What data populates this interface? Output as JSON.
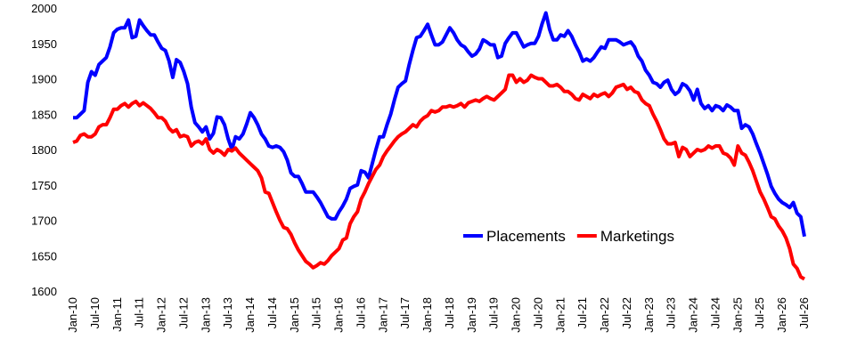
{
  "chart_data": {
    "type": "line",
    "categories": [
      "Jan-10",
      null,
      null,
      null,
      null,
      null,
      "Jul-10",
      null,
      null,
      null,
      null,
      null,
      "Jan-11",
      null,
      null,
      null,
      null,
      null,
      "Jul-11",
      null,
      null,
      null,
      null,
      null,
      "Jan-12",
      null,
      null,
      null,
      null,
      null,
      "Jul-12",
      null,
      null,
      null,
      null,
      null,
      "Jan-13",
      null,
      null,
      null,
      null,
      null,
      "Jul-13",
      null,
      null,
      null,
      null,
      null,
      "Jan-14",
      null,
      null,
      null,
      null,
      null,
      "Jul-14",
      null,
      null,
      null,
      null,
      null,
      "Jan-15",
      null,
      null,
      null,
      null,
      null,
      "Jul-15",
      null,
      null,
      null,
      null,
      null,
      "Jan-16",
      null,
      null,
      null,
      null,
      null,
      "Jul-16",
      null,
      null,
      null,
      null,
      null,
      "Jan-17",
      null,
      null,
      null,
      null,
      null,
      "Jul-17",
      null,
      null,
      null,
      null,
      null,
      "Jan-18",
      null,
      null,
      null,
      null,
      null,
      "Jul-18",
      null,
      null,
      null,
      null,
      null,
      "Jan-19",
      null,
      null,
      null,
      null,
      null,
      "Jul-19",
      null,
      null,
      null,
      null,
      null,
      "Jan-20",
      null,
      null,
      null,
      null,
      null,
      "Jul-20",
      null,
      null,
      null,
      null,
      null,
      "Jan-21",
      null,
      null,
      null,
      null,
      null,
      "Jul-21",
      null,
      null,
      null,
      null,
      null,
      "Jan-22",
      null,
      null,
      null,
      null,
      null,
      "Jul-22",
      null,
      null,
      null,
      null,
      null,
      "Jan-23",
      null,
      null,
      null,
      null,
      null,
      "Jul-23",
      null,
      null,
      null,
      null,
      null,
      "Jan-24",
      null,
      null,
      null,
      null,
      null,
      "Jul-24",
      null,
      null,
      null,
      null,
      null,
      "Jan-25",
      null,
      null,
      null,
      null,
      null,
      "Jul-25",
      null,
      null,
      null,
      null,
      null,
      "Jan-26",
      null,
      null,
      null,
      null,
      null,
      "Jul-26"
    ],
    "series": [
      {
        "name": "Placements",
        "color": "#0000ff",
        "values": [
          1845,
          1845,
          1850,
          1855,
          1895,
          1910,
          1905,
          1920,
          1925,
          1930,
          1945,
          1965,
          1970,
          1972,
          1972,
          1983,
          1958,
          1960,
          1983,
          1975,
          1968,
          1962,
          1962,
          1952,
          1943,
          1940,
          1925,
          1902,
          1927,
          1923,
          1910,
          1893,
          1860,
          1838,
          1832,
          1825,
          1832,
          1815,
          1823,
          1846,
          1845,
          1835,
          1815,
          1800,
          1818,
          1815,
          1822,
          1836,
          1852,
          1845,
          1835,
          1822,
          1815,
          1805,
          1803,
          1805,
          1803,
          1797,
          1785,
          1767,
          1762,
          1762,
          1752,
          1740,
          1740,
          1740,
          1733,
          1725,
          1715,
          1705,
          1702,
          1702,
          1712,
          1720,
          1730,
          1745,
          1748,
          1750,
          1770,
          1768,
          1760,
          1780,
          1800,
          1818,
          1818,
          1835,
          1850,
          1870,
          1888,
          1893,
          1897,
          1920,
          1940,
          1958,
          1960,
          1968,
          1977,
          1962,
          1948,
          1948,
          1952,
          1962,
          1972,
          1965,
          1955,
          1948,
          1945,
          1938,
          1932,
          1935,
          1942,
          1955,
          1952,
          1948,
          1948,
          1930,
          1932,
          1950,
          1958,
          1965,
          1965,
          1955,
          1945,
          1948,
          1950,
          1950,
          1960,
          1978,
          1993,
          1970,
          1955,
          1955,
          1962,
          1960,
          1968,
          1960,
          1948,
          1938,
          1925,
          1928,
          1925,
          1930,
          1938,
          1945,
          1943,
          1955,
          1955,
          1955,
          1952,
          1948,
          1950,
          1952,
          1945,
          1932,
          1925,
          1912,
          1905,
          1895,
          1893,
          1888,
          1895,
          1898,
          1885,
          1878,
          1882,
          1893,
          1890,
          1883,
          1870,
          1885,
          1865,
          1858,
          1862,
          1855,
          1862,
          1860,
          1855,
          1863,
          1860,
          1855,
          1855,
          1830,
          1835,
          1832,
          1822,
          1808,
          1795,
          1780,
          1765,
          1748,
          1738,
          1730,
          1725,
          1722,
          1718,
          1725,
          1710,
          1705,
          1677
        ]
      },
      {
        "name": "Marketings",
        "color": "#ff0000",
        "values": [
          1810,
          1812,
          1820,
          1822,
          1818,
          1818,
          1822,
          1832,
          1835,
          1835,
          1845,
          1857,
          1857,
          1862,
          1865,
          1860,
          1865,
          1868,
          1862,
          1866,
          1862,
          1858,
          1852,
          1845,
          1845,
          1840,
          1830,
          1825,
          1828,
          1818,
          1820,
          1818,
          1805,
          1810,
          1812,
          1808,
          1815,
          1800,
          1795,
          1800,
          1797,
          1792,
          1800,
          1798,
          1802,
          1795,
          1790,
          1785,
          1780,
          1775,
          1770,
          1760,
          1740,
          1738,
          1725,
          1712,
          1700,
          1690,
          1688,
          1680,
          1668,
          1658,
          1650,
          1642,
          1638,
          1633,
          1636,
          1640,
          1638,
          1643,
          1650,
          1655,
          1660,
          1672,
          1675,
          1695,
          1705,
          1712,
          1730,
          1740,
          1752,
          1762,
          1772,
          1778,
          1790,
          1798,
          1805,
          1812,
          1818,
          1822,
          1825,
          1830,
          1835,
          1832,
          1840,
          1845,
          1848,
          1855,
          1853,
          1855,
          1860,
          1860,
          1862,
          1860,
          1862,
          1865,
          1860,
          1866,
          1868,
          1870,
          1868,
          1872,
          1875,
          1872,
          1870,
          1875,
          1880,
          1885,
          1905,
          1905,
          1895,
          1900,
          1895,
          1898,
          1905,
          1902,
          1900,
          1900,
          1895,
          1890,
          1890,
          1892,
          1888,
          1882,
          1882,
          1878,
          1872,
          1870,
          1878,
          1875,
          1872,
          1878,
          1875,
          1878,
          1880,
          1875,
          1880,
          1888,
          1890,
          1892,
          1885,
          1888,
          1882,
          1880,
          1870,
          1865,
          1862,
          1850,
          1840,
          1828,
          1815,
          1808,
          1808,
          1810,
          1790,
          1803,
          1800,
          1790,
          1795,
          1800,
          1798,
          1800,
          1805,
          1802,
          1805,
          1805,
          1795,
          1793,
          1788,
          1778,
          1805,
          1795,
          1792,
          1782,
          1770,
          1755,
          1740,
          1730,
          1718,
          1705,
          1702,
          1692,
          1685,
          1675,
          1660,
          1638,
          1632,
          1620,
          1617
        ]
      }
    ],
    "ylim": [
      1600,
      2000
    ],
    "yticks": [
      1600,
      1650,
      1700,
      1750,
      1800,
      1850,
      1900,
      1950,
      2000
    ],
    "grid": false,
    "legend": "center-right"
  }
}
